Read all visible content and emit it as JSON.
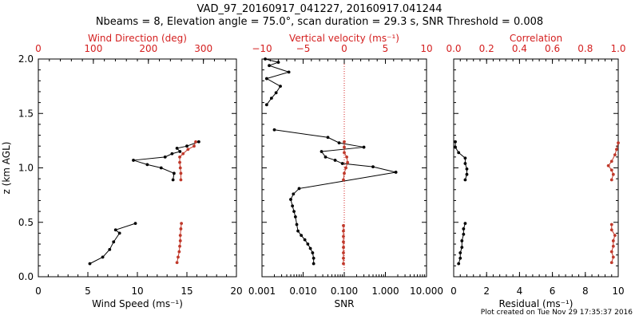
{
  "title": "VAD_97_20160917_041227, 20160917.041244",
  "subtitle": "Nbeams = 8, Elevation angle = 75.0°, scan duration = 29.3 s, SNR Threshold = 0.008",
  "credit": "Plot created on Tue Nov 29 17:35:37 2016",
  "colors": {
    "axis": "#000000",
    "red": "#d42020",
    "redpoint": "#c0392b",
    "black": "#000000"
  },
  "chart_data": [
    {
      "type": "line",
      "panel": "wind",
      "ylabel": "z (km AGL)",
      "ylim": [
        0,
        2
      ],
      "yticks": [
        "0.0",
        "0.5",
        "1.0",
        "1.5",
        "2.0"
      ],
      "bottom_axis": {
        "label": "Wind Speed (ms⁻¹)",
        "range": [
          0,
          20
        ],
        "ticks": [
          "0",
          "5",
          "10",
          "15",
          "20"
        ],
        "color": "#000000"
      },
      "top_axis": {
        "label": "Wind Direction (deg)",
        "range": [
          0,
          360
        ],
        "ticks": [
          "0",
          "100",
          "200",
          "300"
        ],
        "color": "#d42020"
      },
      "series": [
        {
          "axis": "bottom",
          "color": "#000000",
          "segments": [
            [
              [
                5.2,
                0.12
              ],
              [
                6.5,
                0.18
              ],
              [
                7.2,
                0.25
              ],
              [
                7.6,
                0.32
              ],
              [
                8.2,
                0.4
              ],
              [
                7.8,
                0.43
              ],
              [
                9.8,
                0.49
              ]
            ],
            [
              [
                13.6,
                0.89
              ],
              [
                13.7,
                0.95
              ],
              [
                12.4,
                1.0
              ],
              [
                11.0,
                1.03
              ],
              [
                9.6,
                1.07
              ],
              [
                12.8,
                1.1
              ],
              [
                13.5,
                1.13
              ],
              [
                14.3,
                1.15
              ],
              [
                14.0,
                1.18
              ],
              [
                15.0,
                1.2
              ],
              [
                16.2,
                1.24
              ]
            ]
          ]
        },
        {
          "axis": "top",
          "color": "#c0392b",
          "segments": [
            [
              [
                252,
                0.13
              ],
              [
                254,
                0.18
              ],
              [
                256,
                0.23
              ],
              [
                257,
                0.28
              ],
              [
                258,
                0.33
              ],
              [
                258,
                0.38
              ],
              [
                259,
                0.44
              ],
              [
                260,
                0.49
              ]
            ],
            [
              [
                259,
                0.89
              ],
              [
                259,
                0.95
              ],
              [
                258,
                1.0
              ],
              [
                257,
                1.05
              ],
              [
                257,
                1.1
              ],
              [
                263,
                1.13
              ],
              [
                272,
                1.17
              ],
              [
                283,
                1.2
              ],
              [
                286,
                1.24
              ]
            ]
          ]
        }
      ]
    },
    {
      "type": "line",
      "panel": "snr",
      "ylim": [
        0,
        2
      ],
      "bottom_axis": {
        "label": "SNR",
        "scale": "log",
        "range": [
          0.001,
          10
        ],
        "ticks": [
          "0.001",
          "0.010",
          "0.100",
          "1.000",
          "10.000"
        ],
        "color": "#000000"
      },
      "top_axis": {
        "label": "Vertical velocity (ms⁻¹)",
        "range": [
          -10,
          10
        ],
        "ticks": [
          "−10",
          "−5",
          "0",
          "5",
          "10"
        ],
        "color": "#d42020"
      },
      "reference_line": {
        "value": 0,
        "axis": "top",
        "style": "dotted",
        "color": "#d42020"
      },
      "series": [
        {
          "axis": "bottom",
          "color": "#000000",
          "segments": [
            [
              [
                0.018,
                0.12
              ],
              [
                0.018,
                0.17
              ],
              [
                0.017,
                0.22
              ],
              [
                0.015,
                0.26
              ],
              [
                0.013,
                0.3
              ],
              [
                0.011,
                0.34
              ],
              [
                0.009,
                0.38
              ],
              [
                0.0075,
                0.42
              ],
              [
                0.007,
                0.48
              ],
              [
                0.0065,
                0.55
              ],
              [
                0.006,
                0.6
              ],
              [
                0.0055,
                0.65
              ],
              [
                0.005,
                0.71
              ],
              [
                0.0058,
                0.76
              ],
              [
                0.008,
                0.81
              ],
              [
                1.8,
                0.96
              ],
              [
                0.5,
                1.01
              ],
              [
                0.09,
                1.04
              ],
              [
                0.06,
                1.07
              ],
              [
                0.035,
                1.1
              ],
              [
                0.028,
                1.15
              ],
              [
                0.3,
                1.19
              ],
              [
                0.075,
                1.23
              ],
              [
                0.04,
                1.28
              ],
              [
                0.002,
                1.35
              ]
            ],
            [
              [
                0.0013,
                1.58
              ],
              [
                0.0017,
                1.64
              ],
              [
                0.0022,
                1.69
              ],
              [
                0.0028,
                1.75
              ],
              [
                0.0013,
                1.82
              ],
              [
                0.0045,
                1.88
              ],
              [
                0.0015,
                1.94
              ],
              [
                0.0025,
                1.97
              ],
              [
                0.0012,
                2.0
              ]
            ]
          ]
        },
        {
          "axis": "top",
          "color": "#c0392b",
          "segments": [
            [
              [
                -0.1,
                0.12
              ],
              [
                -0.1,
                0.17
              ],
              [
                -0.1,
                0.22
              ],
              [
                -0.1,
                0.27
              ],
              [
                -0.1,
                0.32
              ],
              [
                -0.1,
                0.37
              ],
              [
                -0.1,
                0.42
              ],
              [
                -0.1,
                0.47
              ]
            ],
            [
              [
                -0.1,
                0.89
              ],
              [
                0.0,
                0.95
              ],
              [
                0.2,
                1.0
              ],
              [
                0.4,
                1.05
              ],
              [
                0.3,
                1.1
              ],
              [
                0.0,
                1.14
              ],
              [
                0.0,
                1.19
              ],
              [
                0.0,
                1.24
              ]
            ]
          ]
        }
      ]
    },
    {
      "type": "line",
      "panel": "residual",
      "ylim": [
        0,
        2
      ],
      "bottom_axis": {
        "label": "Residual (ms⁻¹)",
        "range": [
          0,
          10
        ],
        "ticks": [
          "0",
          "2",
          "4",
          "6",
          "8",
          "10"
        ],
        "color": "#000000"
      },
      "top_axis": {
        "label": "Correlation",
        "range": [
          0,
          1
        ],
        "ticks": [
          "0.0",
          "0.2",
          "0.4",
          "0.6",
          "0.8",
          "1.0"
        ],
        "color": "#d42020"
      },
      "series": [
        {
          "axis": "bottom",
          "color": "#000000",
          "segments": [
            [
              [
                0.3,
                0.12
              ],
              [
                0.4,
                0.17
              ],
              [
                0.4,
                0.22
              ],
              [
                0.5,
                0.27
              ],
              [
                0.5,
                0.33
              ],
              [
                0.6,
                0.39
              ],
              [
                0.6,
                0.44
              ],
              [
                0.7,
                0.49
              ]
            ],
            [
              [
                0.7,
                0.89
              ],
              [
                0.8,
                0.94
              ],
              [
                0.8,
                0.99
              ],
              [
                0.7,
                1.04
              ],
              [
                0.7,
                1.09
              ],
              [
                0.3,
                1.14
              ],
              [
                0.1,
                1.19
              ],
              [
                0.1,
                1.24
              ]
            ]
          ]
        },
        {
          "axis": "top",
          "color": "#c0392b",
          "segments": [
            [
              [
                0.96,
                0.13
              ],
              [
                0.97,
                0.18
              ],
              [
                0.96,
                0.23
              ],
              [
                0.97,
                0.28
              ],
              [
                0.97,
                0.33
              ],
              [
                0.98,
                0.38
              ],
              [
                0.96,
                0.43
              ],
              [
                0.96,
                0.48
              ]
            ],
            [
              [
                0.96,
                0.89
              ],
              [
                0.97,
                0.94
              ],
              [
                0.96,
                0.98
              ],
              [
                0.94,
                1.02
              ],
              [
                0.96,
                1.06
              ],
              [
                0.98,
                1.12
              ],
              [
                0.99,
                1.17
              ],
              [
                1.0,
                1.23
              ]
            ]
          ]
        }
      ]
    }
  ]
}
